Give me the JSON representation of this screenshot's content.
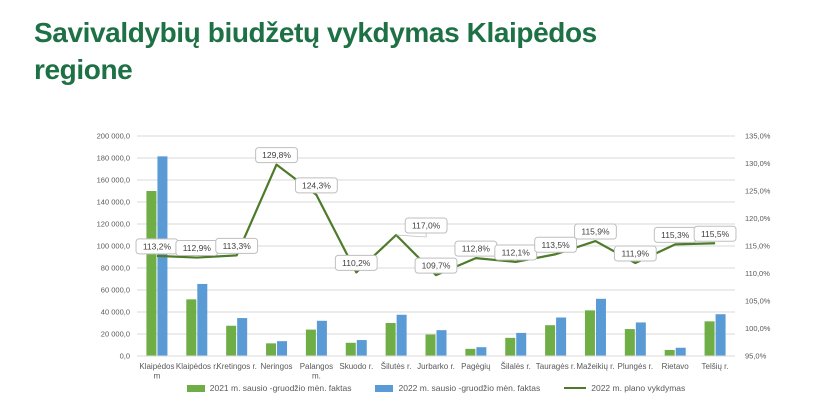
{
  "title": {
    "lines": [
      "Savivaldybių biudžetų vykdymas Klaipėdos",
      "regione"
    ],
    "color": "#1e7145"
  },
  "chart_data": {
    "type": "combo bar+line",
    "categories": [
      "Klaipėdos m",
      "Klaipėdos r.",
      "Kretingos r.",
      "Neringos",
      "Palangos m.",
      "Skuodo r.",
      "Šilutės r.",
      "Jurbarko r.",
      "Pagėgių",
      "Šilalės r.",
      "Tauragės r.",
      "Mažeikių r.",
      "Plungės r.",
      "Rietavo",
      "Telšių r."
    ],
    "category_label_lines": [
      [
        "Klaipėdos",
        "m"
      ],
      [
        "Klaipėdos r."
      ],
      [
        "Kretingos r."
      ],
      [
        "Neringos"
      ],
      [
        "Palangos",
        "m."
      ],
      [
        "Skuodo r."
      ],
      [
        "Šilutės r."
      ],
      [
        "Jurbarko r."
      ],
      [
        "Pagėgių"
      ],
      [
        "Šilalės r."
      ],
      [
        "Tauragės r."
      ],
      [
        "Mažeikių r."
      ],
      [
        "Plungės r."
      ],
      [
        "Rietavo"
      ],
      [
        "Telšių r."
      ]
    ],
    "series": [
      {
        "name": "2021 m. sausio -gruodžio mėn. faktas",
        "type": "bar",
        "color": "#6fad46",
        "axis": "primary",
        "values": [
          150000,
          51500,
          27500,
          11500,
          24000,
          12000,
          30000,
          19500,
          6500,
          16500,
          28000,
          41500,
          24500,
          5500,
          31500
        ]
      },
      {
        "name": "2022 m. sausio -gruodžio mėn. faktas",
        "type": "bar",
        "color": "#5b9bd5",
        "axis": "primary",
        "values": [
          181500,
          65500,
          34500,
          13500,
          32000,
          14500,
          37500,
          23500,
          8000,
          21000,
          35000,
          52000,
          30500,
          7500,
          38000
        ]
      },
      {
        "name": "2022 m. plano vykdymas",
        "type": "line",
        "color": "#4e7b2a",
        "axis": "secondary",
        "values": [
          113.2,
          112.9,
          113.3,
          129.8,
          124.3,
          110.2,
          117.0,
          109.7,
          112.8,
          112.1,
          113.5,
          115.9,
          111.9,
          115.3,
          115.5
        ],
        "labels": [
          "113,2%",
          "112,9%",
          "113,3%",
          "129,8%",
          "124,3%",
          "110,2%",
          "117,0%",
          "109,7%",
          "112,8%",
          "112,1%",
          "113,5%",
          "115,9%",
          "111,9%",
          "115,3%",
          "115,5%"
        ]
      }
    ],
    "left_axis": {
      "min": 0,
      "max": 200000,
      "ticks": [
        "200 000,0",
        "180 000,0",
        "160 000,0",
        "140 000,0",
        "120 000,0",
        "100 000,0",
        "80 000,0",
        "60 000,0",
        "40 000,0",
        "20 000,0",
        "0,0"
      ]
    },
    "right_axis": {
      "min": 95,
      "max": 135,
      "ticks": [
        "135,0%",
        "130,0%",
        "125,0%",
        "120,0%",
        "115,0%",
        "110,0%",
        "105,0%",
        "100,0%",
        "95,0%"
      ]
    },
    "grid": true,
    "legend_position": "bottom",
    "colors": {
      "gridline": "#d9d9d9",
      "axis_text": "#595959",
      "data_label_text": "#404040",
      "data_label_border": "#bfbfbf",
      "data_label_fill": "#ffffff"
    }
  }
}
